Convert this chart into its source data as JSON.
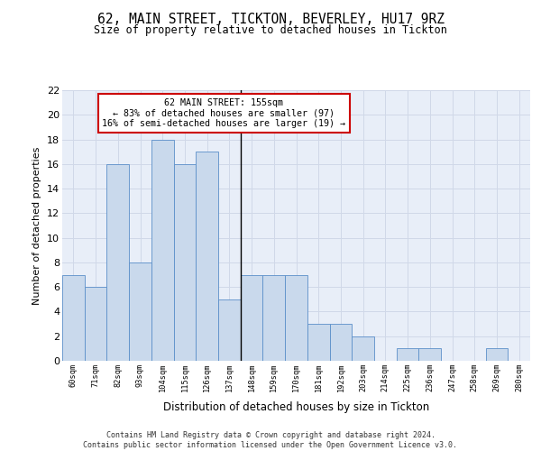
{
  "title1": "62, MAIN STREET, TICKTON, BEVERLEY, HU17 9RZ",
  "title2": "Size of property relative to detached houses in Tickton",
  "xlabel": "Distribution of detached houses by size in Tickton",
  "ylabel": "Number of detached properties",
  "bar_labels": [
    "60sqm",
    "71sqm",
    "82sqm",
    "93sqm",
    "104sqm",
    "115sqm",
    "126sqm",
    "137sqm",
    "148sqm",
    "159sqm",
    "170sqm",
    "181sqm",
    "192sqm",
    "203sqm",
    "214sqm",
    "225sqm",
    "236sqm",
    "247sqm",
    "258sqm",
    "269sqm",
    "280sqm"
  ],
  "bar_values": [
    7,
    6,
    16,
    8,
    18,
    16,
    17,
    5,
    7,
    7,
    7,
    3,
    3,
    2,
    0,
    1,
    1,
    0,
    0,
    1,
    0
  ],
  "bar_color": "#c9d9ec",
  "bar_edge_color": "#5b8fc9",
  "vline_color": "#000000",
  "annotation_text": "62 MAIN STREET: 155sqm\n← 83% of detached houses are smaller (97)\n16% of semi-detached houses are larger (19) →",
  "annotation_box_color": "#ffffff",
  "annotation_box_edge_color": "#cc0000",
  "ylim": [
    0,
    22
  ],
  "yticks": [
    0,
    2,
    4,
    6,
    8,
    10,
    12,
    14,
    16,
    18,
    20,
    22
  ],
  "grid_color": "#d0d8e8",
  "background_color": "#e8eef8",
  "footer": "Contains HM Land Registry data © Crown copyright and database right 2024.\nContains public sector information licensed under the Open Government Licence v3.0."
}
